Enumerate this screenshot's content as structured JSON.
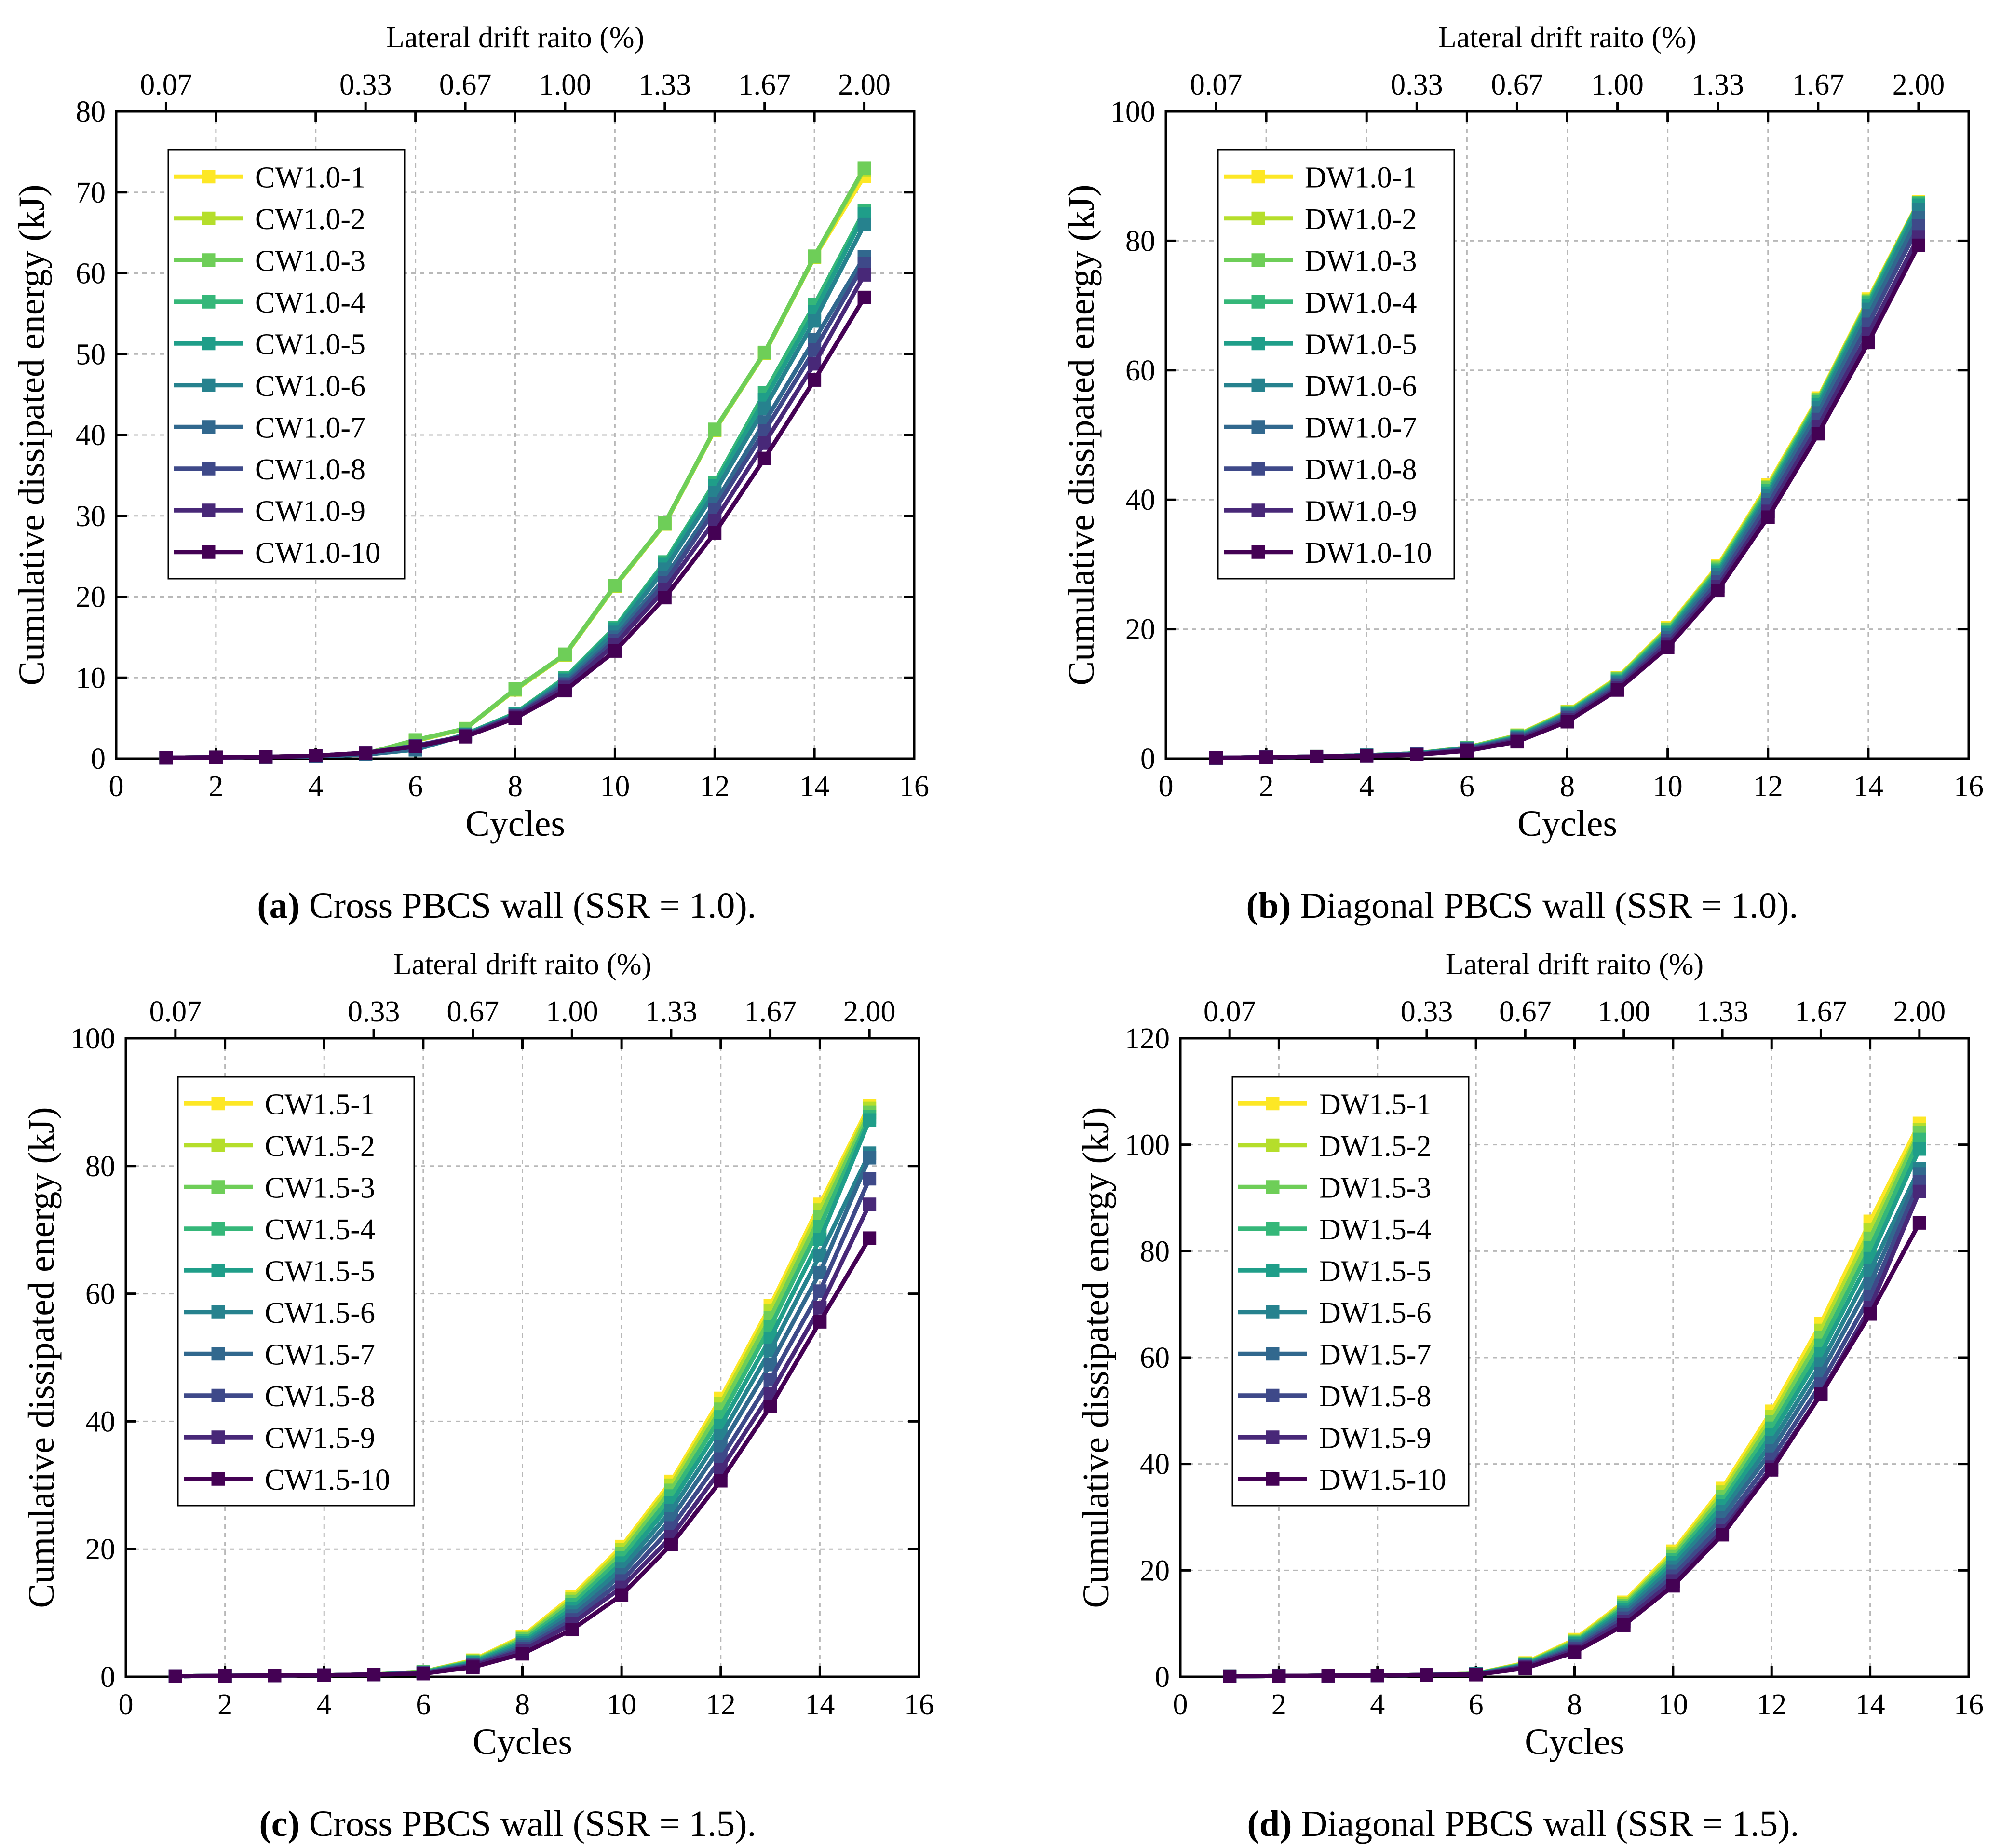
{
  "colors": [
    "#fde725",
    "#b5de2b",
    "#6ece58",
    "#35b779",
    "#1f9e89",
    "#26828e",
    "#31688e",
    "#3e4989",
    "#482878",
    "#440154"
  ],
  "chart_data": [
    {
      "type": "line",
      "caption_letter": "(a)",
      "caption_text": " Cross PBCS wall (SSR = 1.0).",
      "xlabel": "Cycles",
      "ylabel": "Cumulative dissipated energy (kJ)",
      "top_axis_label": "Lateral drift raito (%)",
      "top_ticks": [
        {
          "x": 1,
          "label": "0.07"
        },
        {
          "x": 5,
          "label": "0.33"
        },
        {
          "x": 7,
          "label": "0.67"
        },
        {
          "x": 9,
          "label": "1.00"
        },
        {
          "x": 11,
          "label": "1.33"
        },
        {
          "x": 13,
          "label": "1.67"
        },
        {
          "x": 15,
          "label": "2.00"
        }
      ],
      "xlim": [
        0,
        16
      ],
      "ylim": [
        0,
        80
      ],
      "xticks": [
        0,
        2,
        4,
        6,
        8,
        10,
        12,
        14,
        16
      ],
      "yticks": [
        0,
        10,
        20,
        30,
        40,
        50,
        60,
        70,
        80
      ],
      "x": [
        1,
        2,
        3,
        4,
        5,
        6,
        7,
        8,
        9,
        10,
        11,
        12,
        13,
        14,
        15
      ],
      "series": [
        {
          "name": "CW1.0-1",
          "values": [
            0.1,
            0.15,
            0.2,
            0.35,
            0.6,
            2.2,
            3.7,
            8.5,
            12.8,
            21.3,
            29,
            40.6,
            50.1,
            62,
            72
          ]
        },
        {
          "name": "CW1.0-2",
          "values": [
            0.1,
            0.15,
            0.2,
            0.35,
            0.6,
            2.2,
            3.7,
            8.5,
            12.8,
            21.3,
            29,
            40.6,
            50.1,
            62,
            72.8
          ]
        },
        {
          "name": "CW1.0-3",
          "values": [
            0.1,
            0.15,
            0.2,
            0.35,
            0.6,
            2.3,
            3.7,
            8.6,
            12.9,
            21.4,
            29.1,
            40.7,
            50.2,
            62.1,
            73
          ]
        },
        {
          "name": "CW1.0-4",
          "values": [
            0.1,
            0.15,
            0.2,
            0.3,
            0.5,
            1.2,
            3,
            5.6,
            10,
            16.2,
            24.3,
            34.1,
            45.2,
            56.1,
            67.7
          ]
        },
        {
          "name": "CW1.0-5",
          "values": [
            0.1,
            0.15,
            0.2,
            0.3,
            0.5,
            1.1,
            3,
            5.5,
            9.8,
            16,
            24,
            33.7,
            44.4,
            55.2,
            67.3
          ]
        },
        {
          "name": "CW1.0-6",
          "values": [
            0.1,
            0.15,
            0.2,
            0.3,
            0.5,
            1.1,
            2.9,
            5.4,
            9.6,
            15.6,
            23.4,
            32.9,
            43.3,
            54.1,
            66
          ]
        },
        {
          "name": "CW1.0-7",
          "values": [
            0.1,
            0.15,
            0.2,
            0.3,
            0.5,
            1.2,
            2.9,
            5.3,
            9.3,
            15,
            22.3,
            31.5,
            41.6,
            51.8,
            62
          ]
        },
        {
          "name": "CW1.0-8",
          "values": [
            0.1,
            0.15,
            0.2,
            0.35,
            0.7,
            1.6,
            2.8,
            5.3,
            9.1,
            14.6,
            21.7,
            30.7,
            40.5,
            50.5,
            61.2
          ]
        },
        {
          "name": "CW1.0-9",
          "values": [
            0.1,
            0.15,
            0.2,
            0.35,
            0.7,
            1.5,
            2.8,
            5.2,
            8.8,
            14.1,
            20.9,
            29.4,
            39,
            48.8,
            59.8
          ]
        },
        {
          "name": "CW1.0-10",
          "values": [
            0.1,
            0.15,
            0.2,
            0.35,
            0.7,
            1.5,
            2.7,
            5,
            8.4,
            13.3,
            19.9,
            27.9,
            37.1,
            46.8,
            57
          ]
        }
      ]
    },
    {
      "type": "line",
      "caption_letter": "(b)",
      "caption_text": " Diagonal PBCS wall (SSR = 1.0).",
      "xlabel": "Cycles",
      "ylabel": "Cumulative dissipated energy (kJ)",
      "top_axis_label": "Lateral drift raito (%)",
      "top_ticks": [
        {
          "x": 1,
          "label": "0.07"
        },
        {
          "x": 5,
          "label": "0.33"
        },
        {
          "x": 7,
          "label": "0.67"
        },
        {
          "x": 9,
          "label": "1.00"
        },
        {
          "x": 11,
          "label": "1.33"
        },
        {
          "x": 13,
          "label": "1.67"
        },
        {
          "x": 15,
          "label": "2.00"
        }
      ],
      "xlim": [
        0,
        16
      ],
      "ylim": [
        0,
        100
      ],
      "xticks": [
        0,
        2,
        4,
        6,
        8,
        10,
        12,
        14,
        16
      ],
      "yticks": [
        0,
        20,
        40,
        60,
        80,
        100
      ],
      "x": [
        1,
        2,
        3,
        4,
        5,
        6,
        7,
        8,
        9,
        10,
        11,
        12,
        13,
        14,
        15
      ],
      "series": [
        {
          "name": "DW1.0-1",
          "values": [
            0.1,
            0.2,
            0.3,
            0.5,
            0.8,
            1.7,
            3.6,
            7.3,
            12.5,
            20.2,
            29.8,
            42.3,
            55.7,
            71,
            86
          ]
        },
        {
          "name": "DW1.0-2",
          "values": [
            0.1,
            0.2,
            0.3,
            0.5,
            0.8,
            1.7,
            3.6,
            7.2,
            12.4,
            20,
            29.6,
            42,
            55.5,
            70.8,
            85.8
          ]
        },
        {
          "name": "DW1.0-3",
          "values": [
            0.1,
            0.2,
            0.3,
            0.5,
            0.8,
            1.7,
            3.5,
            7.1,
            12.3,
            19.9,
            29.4,
            41.8,
            55.4,
            70.6,
            85.9
          ]
        },
        {
          "name": "DW1.0-4",
          "values": [
            0.1,
            0.2,
            0.3,
            0.5,
            0.8,
            1.6,
            3.4,
            7,
            12.1,
            19.6,
            29.1,
            41.4,
            55.1,
            70.4,
            85.8
          ]
        },
        {
          "name": "DW1.0-5",
          "values": [
            0.1,
            0.2,
            0.3,
            0.5,
            0.8,
            1.6,
            3.3,
            6.9,
            11.9,
            19.4,
            28.8,
            41,
            54.7,
            70,
            85.5
          ]
        },
        {
          "name": "DW1.0-6",
          "values": [
            0.1,
            0.2,
            0.3,
            0.5,
            0.7,
            1.5,
            3.2,
            6.7,
            11.7,
            19.1,
            28.4,
            40.6,
            54.2,
            69.4,
            84.8
          ]
        },
        {
          "name": "DW1.0-7",
          "values": [
            0.1,
            0.2,
            0.3,
            0.5,
            0.7,
            1.5,
            3.1,
            6.5,
            11.5,
            18.7,
            27.9,
            40,
            53.4,
            68.4,
            83.6
          ]
        },
        {
          "name": "DW1.0-8",
          "values": [
            0.1,
            0.2,
            0.3,
            0.4,
            0.7,
            1.4,
            3,
            6.3,
            11.2,
            18.2,
            27.3,
            39.2,
            52.4,
            67.1,
            82.3
          ]
        },
        {
          "name": "DW1.0-9",
          "values": [
            0.1,
            0.2,
            0.3,
            0.4,
            0.6,
            1.3,
            2.8,
            6,
            10.9,
            17.7,
            26.6,
            38.2,
            51.3,
            65.6,
            80.6
          ]
        },
        {
          "name": "DW1.0-10",
          "values": [
            0.1,
            0.2,
            0.3,
            0.4,
            0.6,
            1.2,
            2.6,
            5.7,
            10.6,
            17.2,
            26,
            37.3,
            50.2,
            64.3,
            79.3
          ]
        }
      ]
    },
    {
      "type": "line",
      "caption_letter": "(c)",
      "caption_text": " Cross PBCS wall (SSR = 1.5).",
      "xlabel": "Cycles",
      "ylabel": "Cumulative dissipated energy (kJ)",
      "top_axis_label": "Lateral drift raito (%)",
      "top_ticks": [
        {
          "x": 1,
          "label": "0.07"
        },
        {
          "x": 5,
          "label": "0.33"
        },
        {
          "x": 7,
          "label": "0.67"
        },
        {
          "x": 9,
          "label": "1.00"
        },
        {
          "x": 11,
          "label": "1.33"
        },
        {
          "x": 13,
          "label": "1.67"
        },
        {
          "x": 15,
          "label": "2.00"
        }
      ],
      "xlim": [
        0,
        16
      ],
      "ylim": [
        0,
        100
      ],
      "xticks": [
        0,
        2,
        4,
        6,
        8,
        10,
        12,
        14,
        16
      ],
      "yticks": [
        0,
        20,
        40,
        60,
        80,
        100
      ],
      "x": [
        1,
        2,
        3,
        4,
        5,
        6,
        7,
        8,
        9,
        10,
        11,
        12,
        13,
        14,
        15
      ],
      "series": [
        {
          "name": "CW1.5-1",
          "values": [
            0.1,
            0.15,
            0.2,
            0.25,
            0.35,
            0.8,
            2.6,
            6.3,
            12.6,
            20.4,
            30.6,
            43.6,
            58.1,
            74,
            89.5
          ]
        },
        {
          "name": "CW1.5-2",
          "values": [
            0.1,
            0.15,
            0.2,
            0.25,
            0.35,
            0.8,
            2.5,
            6.1,
            12.2,
            19.9,
            30,
            42.8,
            57.3,
            73.1,
            89
          ]
        },
        {
          "name": "CW1.5-3",
          "values": [
            0.1,
            0.15,
            0.2,
            0.25,
            0.35,
            0.8,
            2.4,
            5.9,
            11.8,
            19.3,
            29.2,
            41.9,
            56.2,
            72,
            88.4
          ]
        },
        {
          "name": "CW1.5-4",
          "values": [
            0.1,
            0.15,
            0.2,
            0.25,
            0.35,
            0.7,
            2.3,
            5.6,
            11.3,
            18.6,
            28.3,
            40.7,
            54.8,
            70.5,
            87.7
          ]
        },
        {
          "name": "CW1.5-5",
          "values": [
            0.1,
            0.15,
            0.2,
            0.25,
            0.35,
            0.7,
            2.2,
            5.3,
            10.7,
            17.8,
            27.2,
            39.3,
            53,
            68.5,
            87.2
          ]
        },
        {
          "name": "CW1.5-6",
          "values": [
            0.1,
            0.15,
            0.2,
            0.25,
            0.35,
            0.6,
            2,
            5,
            10.1,
            16.9,
            26,
            37.7,
            51.1,
            66,
            82
          ]
        },
        {
          "name": "CW1.5-7",
          "values": [
            0.1,
            0.15,
            0.2,
            0.25,
            0.35,
            0.6,
            1.9,
            4.7,
            9.5,
            16,
            24.7,
            36,
            48.9,
            63.3,
            81.3
          ]
        },
        {
          "name": "CW1.5-8",
          "values": [
            0.1,
            0.15,
            0.2,
            0.25,
            0.35,
            0.6,
            1.8,
            4.4,
            8.9,
            15,
            23.3,
            34.1,
            46.5,
            60.4,
            78
          ]
        },
        {
          "name": "CW1.5-9",
          "values": [
            0.1,
            0.15,
            0.2,
            0.25,
            0.35,
            0.5,
            1.7,
            4.1,
            8.3,
            14,
            21.9,
            32.4,
            44.3,
            57.8,
            74
          ]
        },
        {
          "name": "CW1.5-10",
          "values": [
            0.1,
            0.15,
            0.2,
            0.25,
            0.35,
            0.5,
            1.5,
            3.6,
            7.4,
            12.8,
            20.7,
            30.7,
            42.3,
            55.6,
            68.7
          ]
        }
      ]
    },
    {
      "type": "line",
      "caption_letter": "(d)",
      "caption_text": " Diagonal PBCS wall (SSR = 1.5).",
      "xlabel": "Cycles",
      "ylabel": "Cumulative dissipated energy (kJ)",
      "top_axis_label": "Lateral drift raito (%)",
      "top_ticks": [
        {
          "x": 1,
          "label": "0.07"
        },
        {
          "x": 5,
          "label": "0.33"
        },
        {
          "x": 7,
          "label": "0.67"
        },
        {
          "x": 9,
          "label": "1.00"
        },
        {
          "x": 11,
          "label": "1.33"
        },
        {
          "x": 13,
          "label": "1.67"
        },
        {
          "x": 15,
          "label": "2.00"
        }
      ],
      "xlim": [
        0,
        16
      ],
      "ylim": [
        0,
        120
      ],
      "xticks": [
        0,
        2,
        4,
        6,
        8,
        10,
        12,
        14,
        16
      ],
      "yticks": [
        0,
        20,
        40,
        60,
        80,
        100,
        120
      ],
      "x": [
        1,
        2,
        3,
        4,
        5,
        6,
        7,
        8,
        9,
        10,
        11,
        12,
        13,
        14,
        15
      ],
      "series": [
        {
          "name": "DW1.5-1",
          "values": [
            0.1,
            0.15,
            0.2,
            0.25,
            0.35,
            0.6,
            2.6,
            7,
            14,
            23.6,
            35.4,
            49.9,
            66.4,
            85.6,
            104
          ]
        },
        {
          "name": "DW1.5-2",
          "values": [
            0.1,
            0.15,
            0.2,
            0.25,
            0.35,
            0.6,
            2.5,
            6.8,
            13.7,
            23.1,
            34.7,
            48.9,
            65.1,
            84,
            102.8
          ]
        },
        {
          "name": "DW1.5-3",
          "values": [
            0.1,
            0.15,
            0.2,
            0.25,
            0.35,
            0.6,
            2.4,
            6.6,
            13.4,
            22.6,
            33.9,
            47.9,
            63.8,
            82.4,
            102.3
          ]
        },
        {
          "name": "DW1.5-4",
          "values": [
            0.1,
            0.15,
            0.2,
            0.25,
            0.35,
            0.55,
            2.3,
            6.4,
            13,
            22,
            33,
            46.7,
            62.3,
            80.6,
            101
          ]
        },
        {
          "name": "DW1.5-5",
          "values": [
            0.1,
            0.15,
            0.2,
            0.25,
            0.35,
            0.55,
            2.2,
            6.2,
            12.6,
            21.4,
            32.1,
            45.5,
            60.7,
            78.6,
            99.2
          ]
        },
        {
          "name": "DW1.5-6",
          "values": [
            0.1,
            0.15,
            0.2,
            0.25,
            0.35,
            0.5,
            2.1,
            5.9,
            12.1,
            20.6,
            31,
            44,
            58.8,
            76.3,
            95.5
          ]
        },
        {
          "name": "DW1.5-7",
          "values": [
            0.1,
            0.15,
            0.2,
            0.25,
            0.35,
            0.5,
            2,
            5.6,
            11.6,
            19.8,
            29.9,
            42.5,
            57,
            73.9,
            94.5
          ]
        },
        {
          "name": "DW1.5-8",
          "values": [
            0.1,
            0.15,
            0.2,
            0.25,
            0.35,
            0.45,
            1.9,
            5.3,
            11,
            18.9,
            28.6,
            40.9,
            55,
            71.5,
            93
          ]
        },
        {
          "name": "DW1.5-9",
          "values": [
            0.1,
            0.15,
            0.2,
            0.25,
            0.35,
            0.45,
            1.8,
            5,
            10.4,
            18,
            27.4,
            39.4,
            53.2,
            69.4,
            91.2
          ]
        },
        {
          "name": "DW1.5-10",
          "values": [
            0.1,
            0.15,
            0.2,
            0.25,
            0.35,
            0.4,
            1.6,
            4.6,
            9.7,
            17.1,
            26.7,
            38.9,
            53.1,
            68.2,
            85.3
          ]
        }
      ]
    }
  ]
}
